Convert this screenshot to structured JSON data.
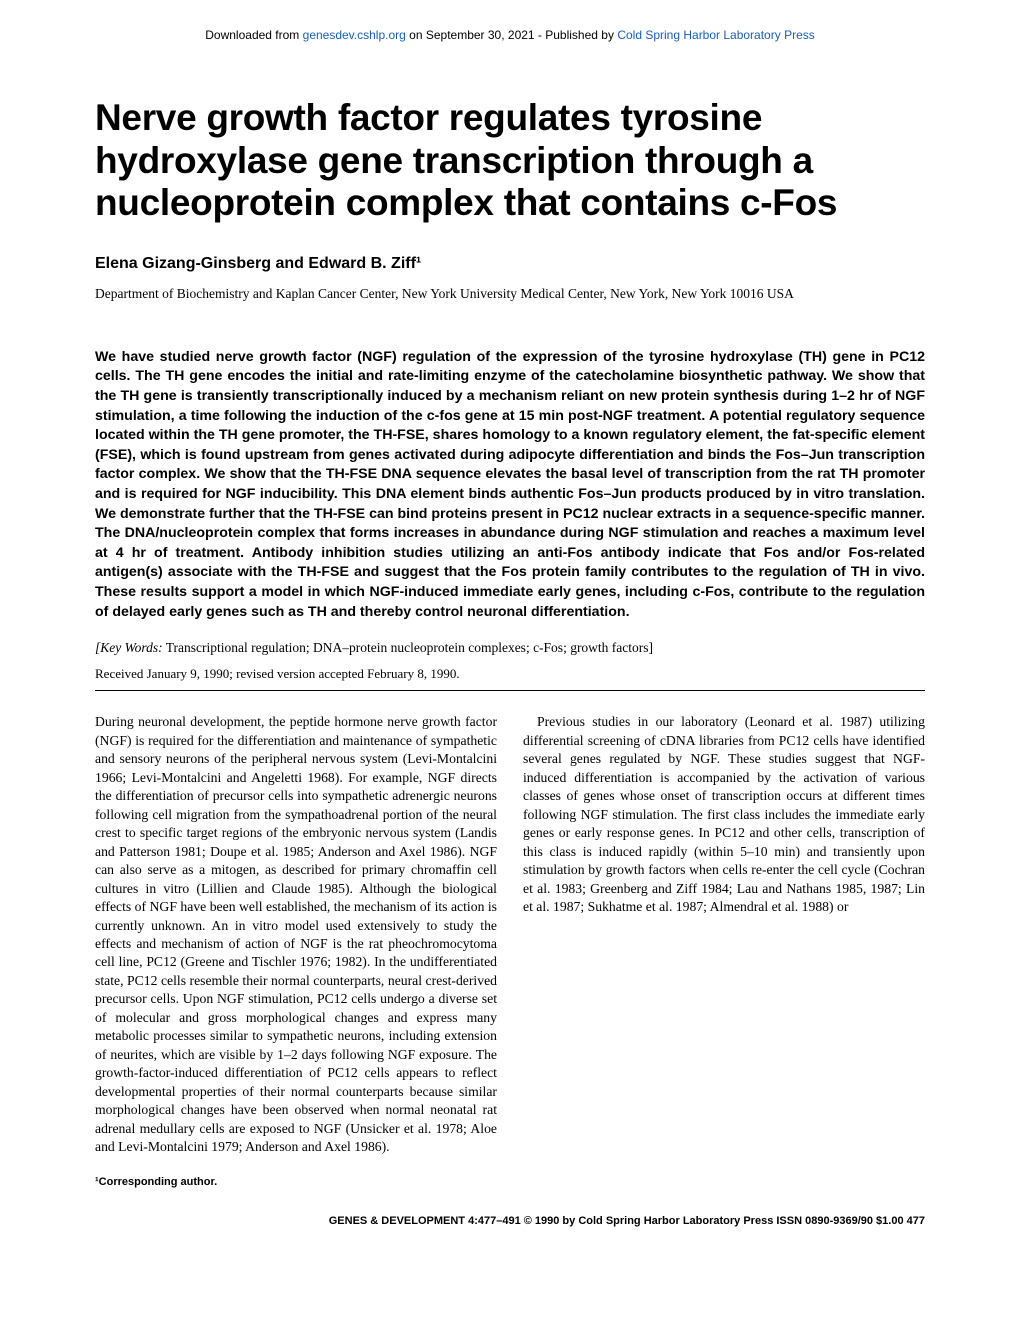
{
  "topbar": {
    "prefix": "Downloaded from ",
    "link1": "genesdev.cshlp.org",
    "mid": " on September 30, 2021 - Published by ",
    "link2": "Cold Spring Harbor Laboratory Press"
  },
  "title": "Nerve growth factor regulates tyrosine hydroxylase gene transcription through a nucleoprotein complex that contains c-Fos",
  "authors": "Elena Gizang-Ginsberg and Edward B. Ziff¹",
  "affiliation": "Department of Biochemistry and Kaplan Cancer Center, New York University Medical Center, New York, New York 10016 USA",
  "abstract": "We have studied nerve growth factor (NGF) regulation of the expression of the tyrosine hydroxylase (TH) gene in PC12 cells. The TH gene encodes the initial and rate-limiting enzyme of the catecholamine biosynthetic pathway. We show that the TH gene is transiently transcriptionally induced by a mechanism reliant on new protein synthesis during 1–2 hr of NGF stimulation, a time following the induction of the c-fos gene at 15 min post-NGF treatment. A potential regulatory sequence located within the TH gene promoter, the TH-FSE, shares homology to a known regulatory element, the fat-specific element (FSE), which is found upstream from genes activated during adipocyte differentiation and binds the Fos–Jun transcription factor complex. We show that the TH-FSE DNA sequence elevates the basal level of transcription from the rat TH promoter and is required for NGF inducibility. This DNA element binds authentic Fos–Jun products produced by in vitro translation. We demonstrate further that the TH-FSE can bind proteins present in PC12 nuclear extracts in a sequence-specific manner. The DNA/nucleoprotein complex that forms increases in abundance during NGF stimulation and reaches a maximum level at 4 hr of treatment. Antibody inhibition studies utilizing an anti-Fos antibody indicate that Fos and/or Fos-related antigen(s) associate with the TH-FSE and suggest that the Fos protein family contributes to the regulation of TH in vivo. These results support a model in which NGF-induced immediate early genes, including c-Fos, contribute to the regulation of delayed early genes such as TH and thereby control neuronal differentiation.",
  "keywords": {
    "label": "[Key Words:",
    "text": " Transcriptional regulation; DNA–protein nucleoprotein complexes; c-Fos; growth factors]"
  },
  "received": "Received January 9, 1990; revised version accepted February 8, 1990.",
  "body": {
    "p1": "During neuronal development, the peptide hormone nerve growth factor (NGF) is required for the differentiation and maintenance of sympathetic and sensory neurons of the peripheral nervous system (Levi-Montalcini 1966; Levi-Montalcini and Angeletti 1968). For example, NGF directs the differentiation of precursor cells into sympathetic adrenergic neurons following cell migration from the sympathoadrenal portion of the neural crest to specific target regions of the embryonic nervous system (Landis and Patterson 1981; Doupe et al. 1985; Anderson and Axel 1986). NGF can also serve as a mitogen, as described for primary chromaffin cell cultures in vitro (Lillien and Claude 1985). Although the biological effects of NGF have been well established, the mechanism of its action is currently unknown. An in vitro model used extensively to study the effects and mechanism of action of NGF is the rat pheochromocytoma cell line, PC12 (Greene and Tischler 1976; 1982). In the undifferentiated state, PC12 cells resemble their normal counterparts, neural crest-derived precursor cells. Upon NGF stimulation, PC12 cells undergo a diverse set of molecular and gross morphological changes and express many metabolic processes similar to sympathetic neurons, including extension of neurites, which are visible by 1–2 days following NGF exposure. The growth-factor-induced differentiation of PC12 cells appears to reflect developmental properties of their normal counterparts because similar morphological changes have been observed when normal neonatal rat adrenal medullary cells are exposed to NGF (Unsicker et al. 1978; Aloe and Levi-Montalcini 1979; Anderson and Axel 1986).",
    "p2": "Previous studies in our laboratory (Leonard et al. 1987) utilizing differential screening of cDNA libraries from PC12 cells have identified several genes regulated by NGF. These studies suggest that NGF-induced differentiation is accompanied by the activation of various classes of genes whose onset of transcription occurs at different times following NGF stimulation. The first class includes the immediate early genes or early response genes. In PC12 and other cells, transcription of this class is induced rapidly (within 5–10 min) and transiently upon stimulation by growth factors when cells re-enter the cell cycle (Cochran et al. 1983; Greenberg and Ziff 1984; Lau and Nathans 1985, 1987; Lin et al. 1987; Sukhatme et al. 1987; Almendral et al. 1988) or"
  },
  "corresponding": "¹Corresponding author.",
  "footer": "GENES & DEVELOPMENT 4:477–491 © 1990 by Cold Spring Harbor Laboratory Press ISSN 0890-9369/90 $1.00       477"
}
